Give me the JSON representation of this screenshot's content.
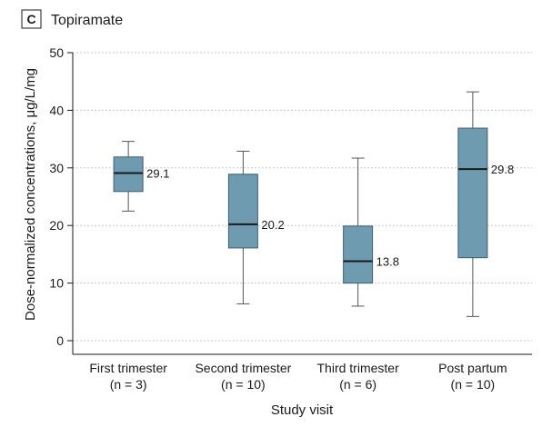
{
  "panel_label": "C",
  "chart_data": {
    "type": "box",
    "title": "Topiramate",
    "xlabel": "Study visit",
    "ylabel": "Dose-normalized concentrations, μg/L/mg",
    "ylim": [
      0,
      50
    ],
    "yticks": [
      0,
      10,
      20,
      30,
      40,
      50
    ],
    "grid": "horizontal-dashed",
    "box_color": "#6f9bb0",
    "categories": [
      {
        "label": "First trimester",
        "n_label": "(n = 3)",
        "min": 22.5,
        "q1": 25.9,
        "median": 29.1,
        "q3": 31.9,
        "max": 34.6,
        "median_label": "29.1"
      },
      {
        "label": "Second trimester",
        "n_label": "(n = 10)",
        "min": 6.4,
        "q1": 16.1,
        "median": 20.2,
        "q3": 28.9,
        "max": 32.9,
        "median_label": "20.2"
      },
      {
        "label": "Third trimester",
        "n_label": "(n = 6)",
        "min": 6.0,
        "q1": 10.0,
        "median": 13.8,
        "q3": 19.9,
        "max": 31.7,
        "median_label": "13.8"
      },
      {
        "label": "Post partum",
        "n_label": "(n = 10)",
        "min": 4.2,
        "q1": 14.4,
        "median": 29.8,
        "q3": 36.9,
        "max": 43.2,
        "median_label": "29.8"
      }
    ]
  }
}
